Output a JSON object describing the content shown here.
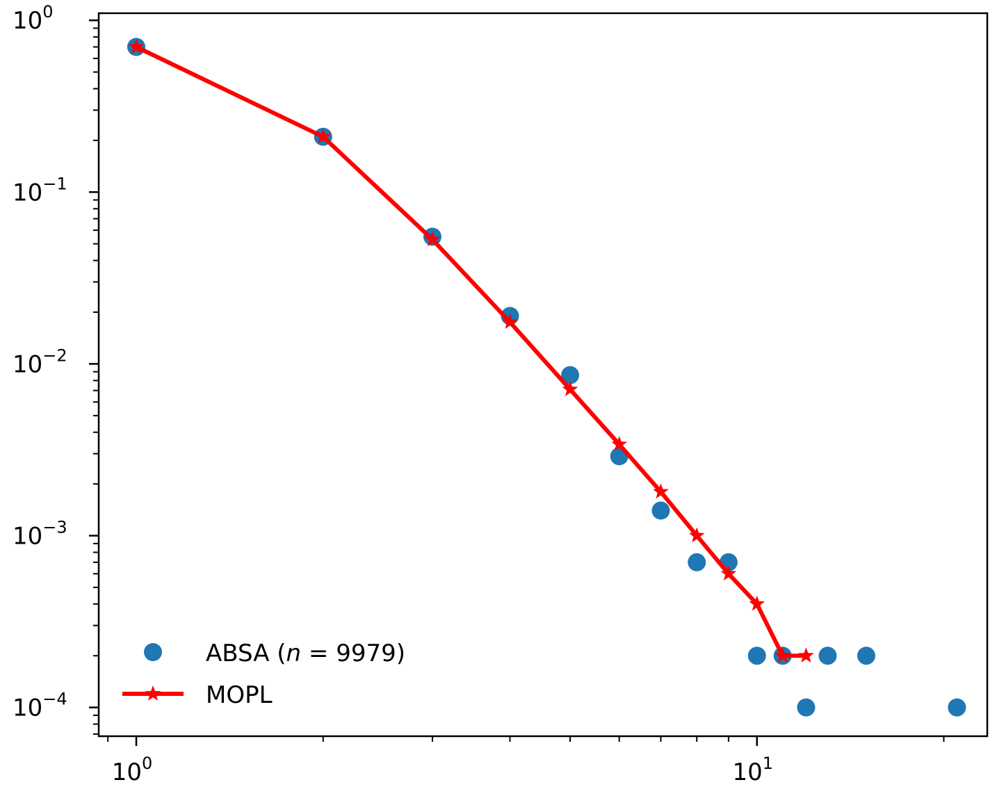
{
  "chart_data": {
    "type": "scatter",
    "xscale": "log",
    "yscale": "log",
    "xlim": [
      0.87,
      23.5
    ],
    "ylim": [
      6.8e-05,
      1.1
    ],
    "grid": false,
    "legend_position": "lower-left",
    "x_major_ticks": [
      {
        "value": 1,
        "base": "10",
        "exp": "0"
      },
      {
        "value": 10,
        "base": "10",
        "exp": "1"
      }
    ],
    "y_major_ticks": [
      {
        "value": 1,
        "base": "10",
        "exp": "0"
      },
      {
        "value": 0.1,
        "base": "10",
        "exp": "−1"
      },
      {
        "value": 0.01,
        "base": "10",
        "exp": "−2"
      },
      {
        "value": 0.001,
        "base": "10",
        "exp": "−3"
      },
      {
        "value": 0.0001,
        "base": "10",
        "exp": "−4"
      }
    ],
    "series": [
      {
        "name": "ABSA (n = 9979)",
        "legend_prefix": "ABSA (",
        "legend_italic": "n",
        "legend_suffix": " = 9979)",
        "kind": "scatter",
        "color": "#1f77b4",
        "x": [
          1,
          2,
          3,
          4,
          5,
          6,
          7,
          8,
          9,
          10,
          11,
          12,
          13,
          15,
          21
        ],
        "y": [
          0.7,
          0.21,
          0.055,
          0.019,
          0.0086,
          0.0029,
          0.0014,
          0.0007,
          0.0007,
          0.0002,
          0.0002,
          0.0001,
          0.0002,
          0.0002,
          0.0001
        ]
      },
      {
        "name": "MOPL",
        "kind": "line-star",
        "color": "#ff0000",
        "x": [
          1,
          2,
          3,
          4,
          5,
          6,
          7,
          8,
          9,
          10,
          11,
          12
        ],
        "y": [
          0.7,
          0.21,
          0.053,
          0.0175,
          0.0071,
          0.0034,
          0.0018,
          0.001,
          0.0006,
          0.0004,
          0.0002,
          0.0002
        ]
      }
    ]
  }
}
